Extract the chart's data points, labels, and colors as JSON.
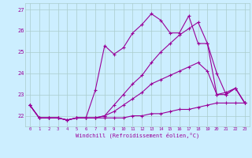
{
  "xlabel": "Windchill (Refroidissement éolien,°C)",
  "xlim": [
    -0.5,
    23.5
  ],
  "ylim": [
    21.5,
    27.3
  ],
  "yticks": [
    22,
    23,
    24,
    25,
    26,
    27
  ],
  "xticks": [
    0,
    1,
    2,
    3,
    4,
    5,
    6,
    7,
    8,
    9,
    10,
    11,
    12,
    13,
    14,
    15,
    16,
    17,
    18,
    19,
    20,
    21,
    22,
    23
  ],
  "bg_color": "#cceeff",
  "line_color": "#990099",
  "grid_color": "#aacccc",
  "series": [
    [
      22.5,
      21.9,
      21.9,
      21.9,
      21.8,
      21.9,
      21.9,
      21.9,
      21.9,
      21.9,
      21.9,
      22.0,
      22.0,
      22.1,
      22.1,
      22.2,
      22.3,
      22.3,
      22.4,
      22.5,
      22.6,
      22.6,
      22.6,
      22.6
    ],
    [
      22.5,
      21.9,
      21.9,
      21.9,
      21.8,
      21.9,
      21.9,
      21.9,
      22.0,
      22.2,
      22.5,
      22.8,
      23.1,
      23.5,
      23.7,
      23.9,
      24.1,
      24.3,
      24.5,
      24.1,
      23.0,
      23.1,
      23.3,
      22.6
    ],
    [
      22.5,
      21.9,
      21.9,
      21.9,
      21.8,
      21.9,
      21.9,
      23.2,
      25.3,
      24.9,
      25.2,
      25.9,
      26.3,
      26.8,
      26.5,
      25.9,
      25.9,
      26.7,
      25.4,
      25.4,
      24.0,
      23.0,
      23.3,
      22.6
    ],
    [
      22.5,
      21.9,
      21.9,
      21.9,
      21.8,
      21.9,
      21.9,
      21.9,
      22.0,
      22.5,
      23.0,
      23.5,
      23.9,
      24.5,
      25.0,
      25.4,
      25.8,
      26.1,
      26.4,
      25.4,
      23.0,
      23.0,
      23.3,
      22.6
    ]
  ]
}
